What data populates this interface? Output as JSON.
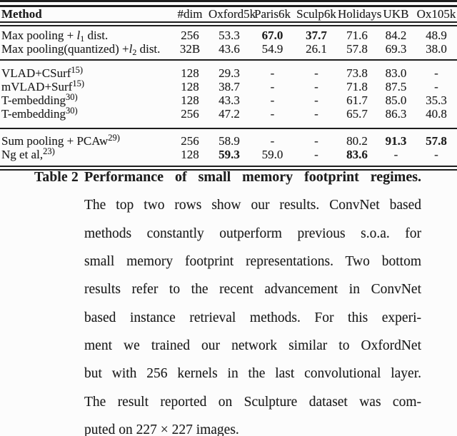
{
  "colors": {
    "ink": "#1e1e1e",
    "background": "#fcfcfc"
  },
  "table": {
    "columns": [
      "Method",
      "#dim",
      "Oxford5k",
      "Paris6k",
      "Sculp6k",
      "Holidays",
      "UKB",
      "Ox105k"
    ],
    "groups": [
      {
        "rows": [
          {
            "method": [
              {
                "t": "text",
                "v": "Max pooling + "
              },
              {
                "t": "var",
                "v": "l"
              },
              {
                "t": "sub",
                "v": "1"
              },
              {
                "t": "text",
                "v": " dist."
              }
            ],
            "values": [
              "256",
              "53.3",
              "67.0",
              "37.7",
              "71.6",
              "84.2",
              "48.9"
            ],
            "bold": [
              false,
              false,
              true,
              true,
              false,
              false,
              false
            ]
          },
          {
            "method": [
              {
                "t": "text",
                "v": "Max pooling(quantized) +"
              },
              {
                "t": "var",
                "v": "l"
              },
              {
                "t": "sub",
                "v": "2"
              },
              {
                "t": "text",
                "v": " dist."
              }
            ],
            "values": [
              "32B",
              "43.6",
              "54.9",
              "26.1",
              "57.8",
              "69.3",
              "38.0"
            ],
            "bold": [
              false,
              false,
              false,
              false,
              false,
              false,
              false
            ]
          }
        ]
      },
      {
        "rows": [
          {
            "method": [
              {
                "t": "text",
                "v": "VLAD+CSurf"
              },
              {
                "t": "sup",
                "v": "15)"
              }
            ],
            "values": [
              "128",
              "29.3",
              "-",
              "-",
              "73.8",
              "83.0",
              "-"
            ],
            "bold": [
              false,
              false,
              false,
              false,
              false,
              false,
              false
            ]
          },
          {
            "method": [
              {
                "t": "text",
                "v": "mVLAD+Surf"
              },
              {
                "t": "sup",
                "v": "15)"
              }
            ],
            "values": [
              "128",
              "38.7",
              "-",
              "-",
              "71.8",
              "87.5",
              "-"
            ],
            "bold": [
              false,
              false,
              false,
              false,
              false,
              false,
              false
            ]
          },
          {
            "method": [
              {
                "t": "text",
                "v": "T-embedding"
              },
              {
                "t": "sup",
                "v": "30)"
              }
            ],
            "values": [
              "128",
              "43.3",
              "-",
              "-",
              "61.7",
              "85.0",
              "35.3"
            ],
            "bold": [
              false,
              false,
              false,
              false,
              false,
              false,
              false
            ]
          },
          {
            "method": [
              {
                "t": "text",
                "v": "T-embedding"
              },
              {
                "t": "sup",
                "v": "30)"
              }
            ],
            "values": [
              "256",
              "47.2",
              "-",
              "-",
              "65.7",
              "86.3",
              "40.8"
            ],
            "bold": [
              false,
              false,
              false,
              false,
              false,
              false,
              false
            ]
          }
        ]
      },
      {
        "rows": [
          {
            "method": [
              {
                "t": "text",
                "v": "Sum pooling + PCAw"
              },
              {
                "t": "sup",
                "v": "29)"
              }
            ],
            "values": [
              "256",
              "58.9",
              "-",
              "-",
              "80.2",
              "91.3",
              "57.8"
            ],
            "bold": [
              false,
              false,
              false,
              false,
              false,
              true,
              true
            ]
          },
          {
            "method": [
              {
                "t": "text",
                "v": "Ng et al,"
              },
              {
                "t": "sup",
                "v": "23)"
              }
            ],
            "values": [
              "128",
              "59.3",
              "59.0",
              "-",
              "83.6",
              "-",
              "-"
            ],
            "bold": [
              false,
              true,
              false,
              false,
              true,
              false,
              false
            ]
          }
        ]
      }
    ]
  },
  "caption": {
    "label": "Table 2",
    "lines": [
      {
        "text": "Performance of small memory footprint regimes.",
        "bold": true
      },
      {
        "text": "The top two rows show our results.  ConvNet based"
      },
      {
        "text": "methods constantly outperform previous s.o.a.  for"
      },
      {
        "text": "small memory footprint representations. Two bottom"
      },
      {
        "text": "results refer to the recent advancement in ConvNet"
      },
      {
        "text": "based instance retrieval methods.  For this experi-"
      },
      {
        "text": "ment we trained our network similar to OxfordNet"
      },
      {
        "text": "but with 256 kernels in the last convolutional layer."
      },
      {
        "text": "The result reported on Sculpture dataset was com-"
      },
      {
        "text": "puted on 227 × 227 images.",
        "last": true
      }
    ]
  }
}
